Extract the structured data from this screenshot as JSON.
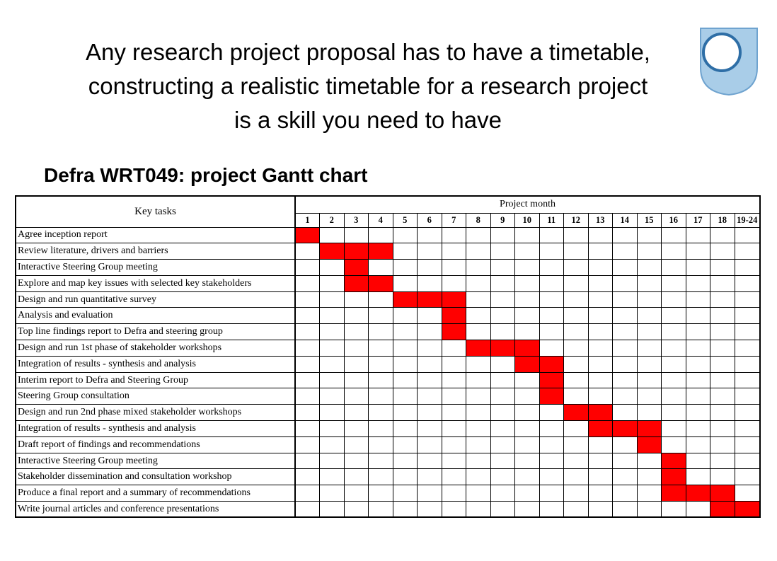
{
  "slide": {
    "headline_lines": [
      "Any research project proposal has to have a timetable,",
      "constructing a realistic timetable  for a research project",
      "is a skill you need to have"
    ],
    "subtitle": "Defra WRT049: project Gantt chart",
    "logo_icon": "ou-shield-logo-icon"
  },
  "gantt": {
    "key_tasks_label": "Key tasks",
    "project_month_label": "Project month",
    "fill_color": "#ff0000",
    "months": [
      "1",
      "2",
      "3",
      "4",
      "5",
      "6",
      "7",
      "8",
      "9",
      "10",
      "11",
      "12",
      "13",
      "14",
      "15",
      "16",
      "17",
      "18",
      "19-24"
    ],
    "tasks": [
      {
        "name": "Agree inception report",
        "active_months": [
          "1"
        ]
      },
      {
        "name": "Review literature, drivers and barriers",
        "active_months": [
          "2",
          "3",
          "4"
        ]
      },
      {
        "name": "Interactive Steering Group meeting",
        "active_months": [
          "3"
        ]
      },
      {
        "name": "Explore and map key issues with selected key stakeholders",
        "active_months": [
          "3",
          "4"
        ]
      },
      {
        "name": "Design and run quantitative survey",
        "active_months": [
          "5",
          "6",
          "7"
        ]
      },
      {
        "name": "Analysis and evaluation",
        "active_months": [
          "7"
        ]
      },
      {
        "name": "Top line findings report to Defra and steering group",
        "active_months": [
          "7"
        ]
      },
      {
        "name": "Design and run 1st phase of stakeholder workshops",
        "active_months": [
          "8",
          "9",
          "10"
        ]
      },
      {
        "name": "Integration of results - synthesis and analysis",
        "active_months": [
          "10",
          "11"
        ]
      },
      {
        "name": "Interim report to Defra and Steering Group",
        "active_months": [
          "11"
        ]
      },
      {
        "name": "Steering Group consultation",
        "active_months": [
          "11"
        ]
      },
      {
        "name": "Design and run 2nd phase mixed stakeholder workshops",
        "active_months": [
          "12",
          "13"
        ]
      },
      {
        "name": "Integration of results - synthesis and analysis",
        "active_months": [
          "13",
          "14",
          "15"
        ]
      },
      {
        "name": "Draft report of findings and recommendations",
        "active_months": [
          "15"
        ]
      },
      {
        "name": "Interactive Steering Group meeting",
        "active_months": [
          "16"
        ]
      },
      {
        "name": "Stakeholder dissemination and consultation workshop",
        "active_months": [
          "16"
        ]
      },
      {
        "name": "Produce a final report and a summary of recommendations",
        "active_months": [
          "16",
          "17",
          "18"
        ]
      },
      {
        "name": "Write journal articles and conference presentations",
        "active_months": [
          "18",
          "19-24"
        ]
      }
    ]
  }
}
